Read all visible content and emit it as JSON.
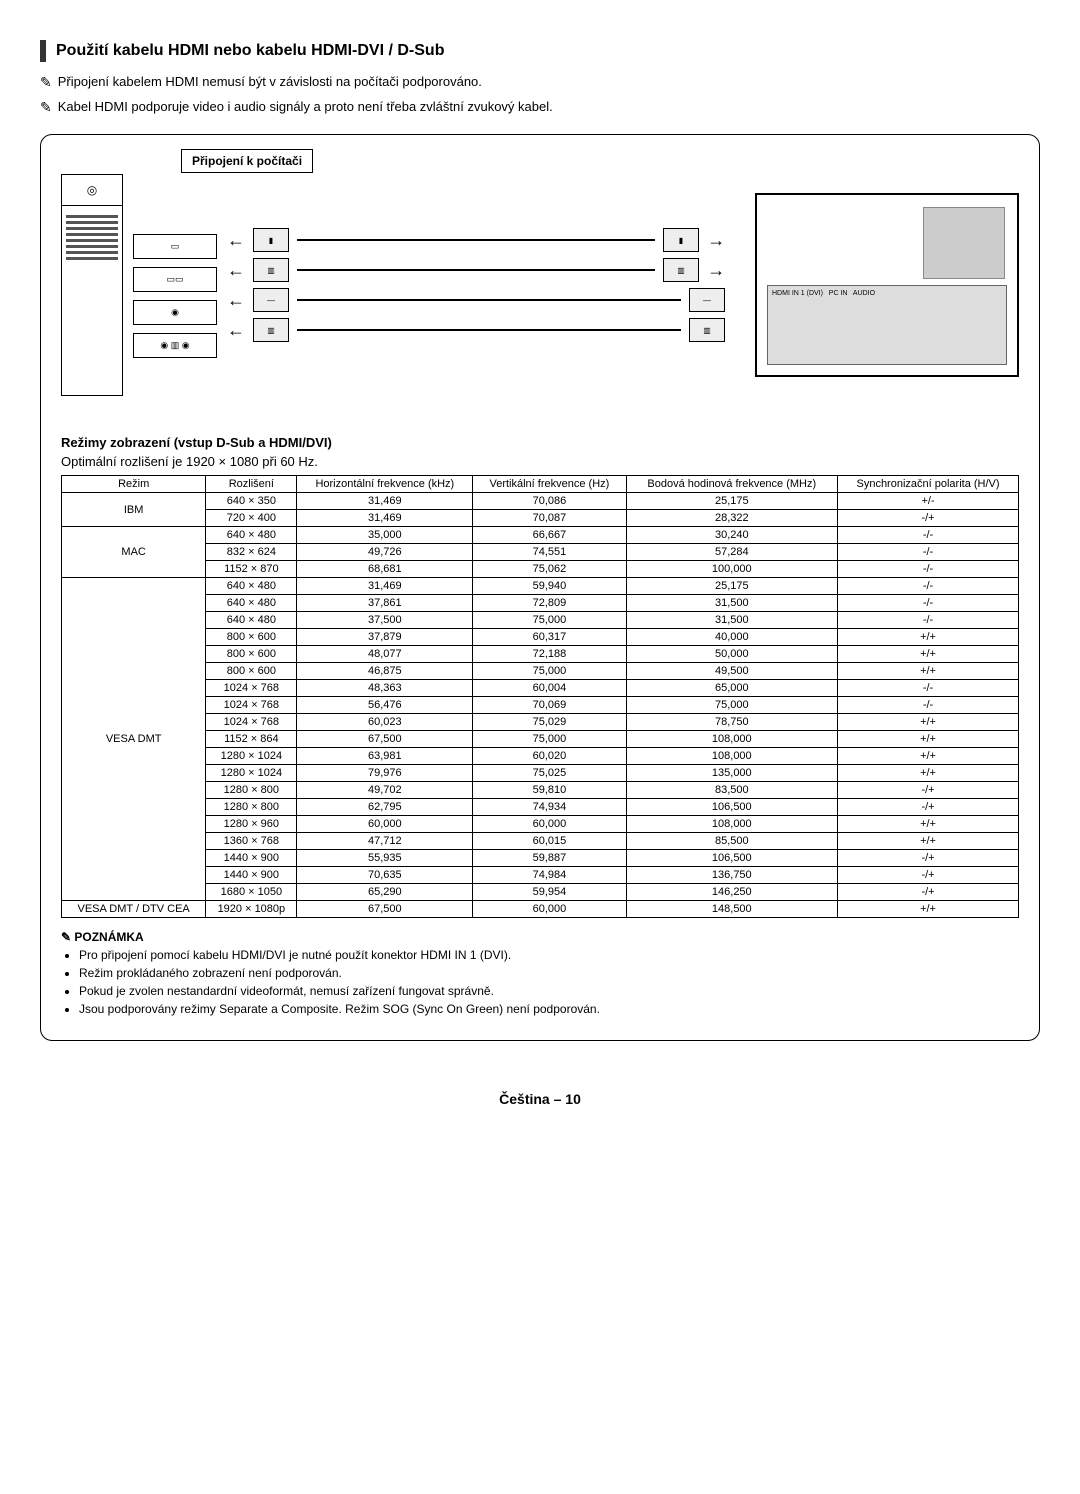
{
  "section_title": "Použití kabelu HDMI nebo kabelu HDMI-DVI / D-Sub",
  "intro_notes": [
    "Připojení kabelem HDMI nemusí být v závislosti na počítači podporováno.",
    "Kabel HDMI podporuje video i audio signály a proto není třeba zvláštní zvukový kabel."
  ],
  "diagram_label": "Připojení k počítači",
  "modes_heading": "Režimy zobrazení (vstup D-Sub a HDMI/DVI)",
  "optimal_text": "Optimální rozlišení je 1920 × 1080 při 60 Hz.",
  "table": {
    "columns": [
      "Režim",
      "Rozlišení",
      "Horizontální frekvence (kHz)",
      "Vertikální frekvence (Hz)",
      "Bodová hodinová frekvence (MHz)",
      "Synchronizační polarita (H/V)"
    ],
    "groups": [
      {
        "mode": "IBM",
        "rows": [
          [
            "640 × 350",
            "31,469",
            "70,086",
            "25,175",
            "+/-"
          ],
          [
            "720 × 400",
            "31,469",
            "70,087",
            "28,322",
            "-/+"
          ]
        ]
      },
      {
        "mode": "MAC",
        "rows": [
          [
            "640 × 480",
            "35,000",
            "66,667",
            "30,240",
            "-/-"
          ],
          [
            "832 × 624",
            "49,726",
            "74,551",
            "57,284",
            "-/-"
          ],
          [
            "1152 × 870",
            "68,681",
            "75,062",
            "100,000",
            "-/-"
          ]
        ]
      },
      {
        "mode": "VESA DMT",
        "rows": [
          [
            "640 × 480",
            "31,469",
            "59,940",
            "25,175",
            "-/-"
          ],
          [
            "640 × 480",
            "37,861",
            "72,809",
            "31,500",
            "-/-"
          ],
          [
            "640 × 480",
            "37,500",
            "75,000",
            "31,500",
            "-/-"
          ],
          [
            "800 × 600",
            "37,879",
            "60,317",
            "40,000",
            "+/+"
          ],
          [
            "800 × 600",
            "48,077",
            "72,188",
            "50,000",
            "+/+"
          ],
          [
            "800 × 600",
            "46,875",
            "75,000",
            "49,500",
            "+/+"
          ],
          [
            "1024 × 768",
            "48,363",
            "60,004",
            "65,000",
            "-/-"
          ],
          [
            "1024 × 768",
            "56,476",
            "70,069",
            "75,000",
            "-/-"
          ],
          [
            "1024 × 768",
            "60,023",
            "75,029",
            "78,750",
            "+/+"
          ],
          [
            "1152 × 864",
            "67,500",
            "75,000",
            "108,000",
            "+/+"
          ],
          [
            "1280 × 1024",
            "63,981",
            "60,020",
            "108,000",
            "+/+"
          ],
          [
            "1280 × 1024",
            "79,976",
            "75,025",
            "135,000",
            "+/+"
          ],
          [
            "1280 × 800",
            "49,702",
            "59,810",
            "83,500",
            "-/+"
          ],
          [
            "1280 × 800",
            "62,795",
            "74,934",
            "106,500",
            "-/+"
          ],
          [
            "1280 × 960",
            "60,000",
            "60,000",
            "108,000",
            "+/+"
          ],
          [
            "1360 × 768",
            "47,712",
            "60,015",
            "85,500",
            "+/+"
          ],
          [
            "1440 × 900",
            "55,935",
            "59,887",
            "106,500",
            "-/+"
          ],
          [
            "1440 × 900",
            "70,635",
            "74,984",
            "136,750",
            "-/+"
          ],
          [
            "1680 × 1050",
            "65,290",
            "59,954",
            "146,250",
            "-/+"
          ]
        ]
      },
      {
        "mode": "VESA DMT / DTV CEA",
        "rows": [
          [
            "1920 × 1080p",
            "67,500",
            "60,000",
            "148,500",
            "+/+"
          ]
        ]
      }
    ]
  },
  "poznamka_title": "POZNÁMKA",
  "poznamka_items": [
    "Pro připojení pomocí kabelu HDMI/DVI je nutné použít konektor HDMI IN 1 (DVI).",
    "Režim prokládaného zobrazení není podporován.",
    "Pokud je zvolen nestandardní videoformát, nemusí zařízení fungovat správně.",
    "Jsou podporovány režimy Separate a Composite. Režim SOG (Sync On Green) není podporován."
  ],
  "footer": "Čeština – 10",
  "colors": {
    "border": "#000000",
    "bg": "#ffffff",
    "panel_gray": "#dddddd",
    "block_gray": "#cccccc"
  }
}
